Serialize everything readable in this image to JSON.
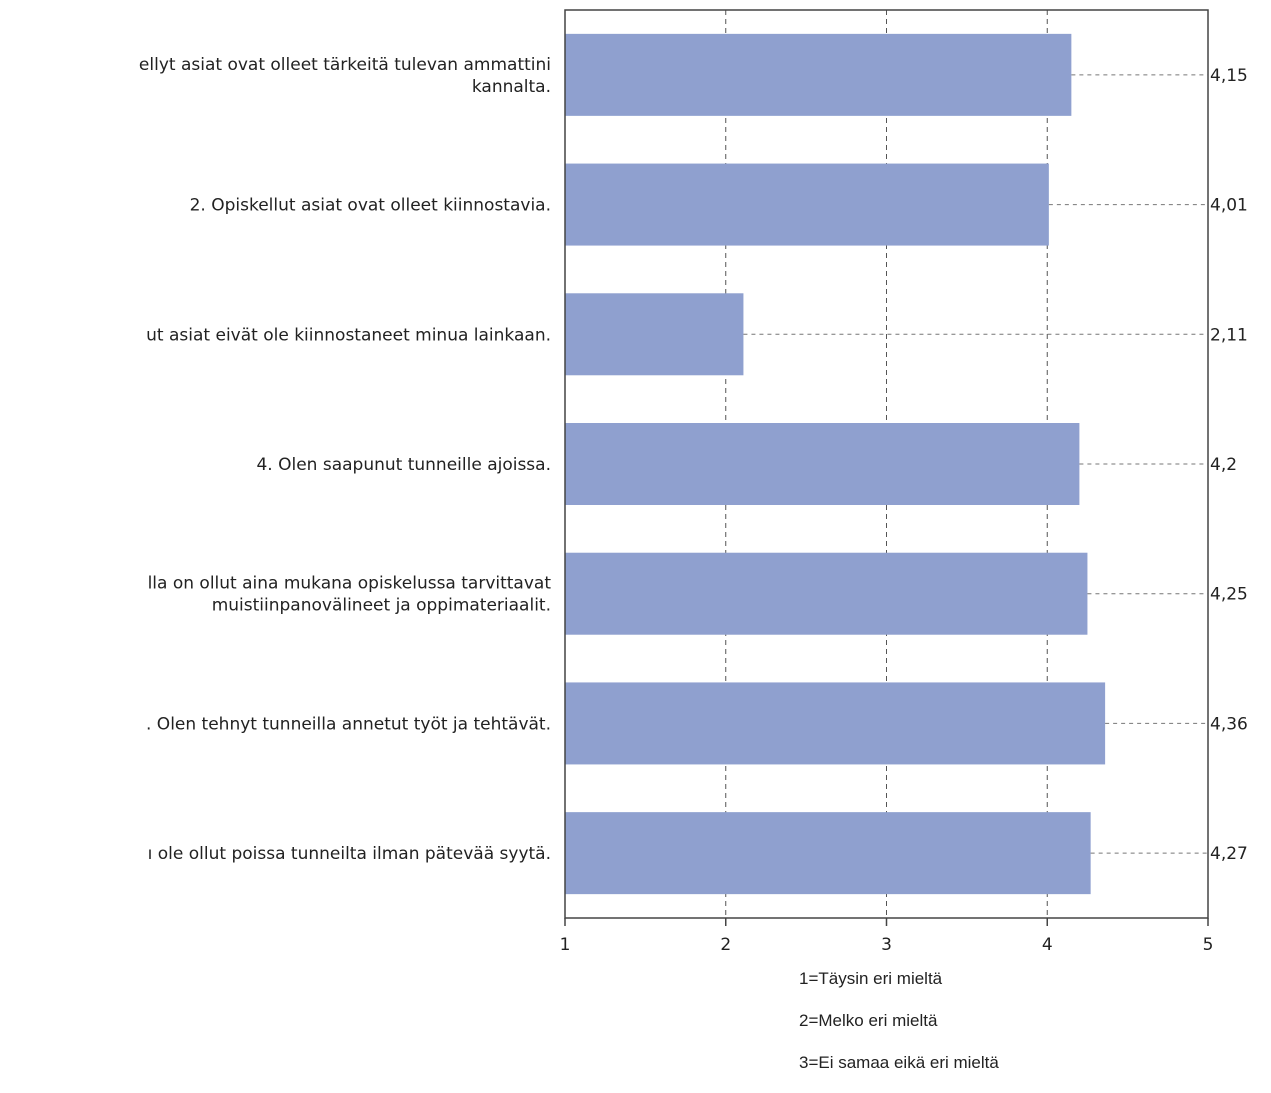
{
  "chart_data": {
    "type": "bar",
    "orientation": "horizontal",
    "categories": [
      [
        "ellyt asiat ovat olleet tärkeitä tulevan ammattini",
        "kannalta."
      ],
      [
        "2. Opiskellut asiat ovat olleet kiinnostavia."
      ],
      [
        "ut asiat eivät ole kiinnostaneet minua lainkaan."
      ],
      [
        "4. Olen saapunut tunneille ajoissa."
      ],
      [
        "lla on ollut aina mukana opiskelussa tarvittavat",
        "muistiinpanovälineet ja oppimateriaalit."
      ],
      [
        ". Olen tehnyt tunneilla annetut työt ja tehtävät."
      ],
      [
        "ı ole ollut poissa tunneilta ilman pätevää syytä."
      ]
    ],
    "values": [
      4.15,
      4.01,
      2.11,
      4.2,
      4.25,
      4.36,
      4.27
    ],
    "value_labels": [
      "4,15",
      "4,01",
      "2,11",
      "4,2",
      "4,25",
      "4,36",
      "4,27"
    ],
    "xlim": [
      1,
      5
    ],
    "xticks": [
      "1",
      "2",
      "3",
      "4",
      "5"
    ],
    "grid": true,
    "bar_color": "#8fa0cf",
    "legend_notes": [
      "1=Täysin eri mieltä",
      "2=Melko eri mieltä",
      "3=Ei samaa eikä eri mieltä"
    ]
  }
}
